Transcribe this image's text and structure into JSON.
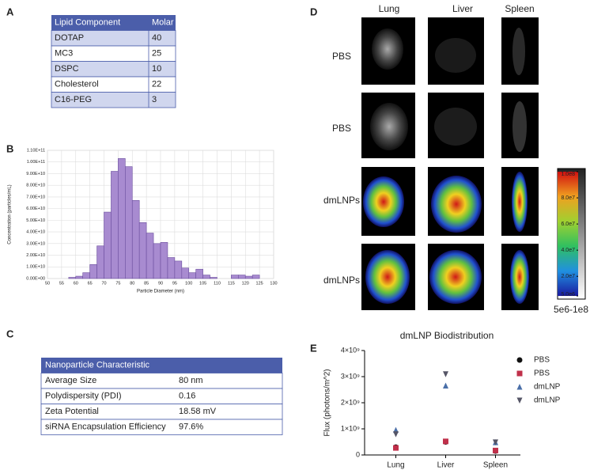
{
  "panel_labels": [
    "A",
    "B",
    "C",
    "D",
    "E"
  ],
  "table_a": {
    "header": [
      "Lipid  Component",
      "Molar %"
    ],
    "rows": [
      [
        "DOTAP",
        "40"
      ],
      [
        "MC3",
        "25"
      ],
      [
        "DSPC",
        "10"
      ],
      [
        "Cholesterol",
        "22"
      ],
      [
        "C16-PEG",
        "3"
      ]
    ]
  },
  "table_c": {
    "header": "Nanoparticle Characteristic",
    "rows": [
      [
        "Average Size",
        "80 nm"
      ],
      [
        "Polydispersity (PDI)",
        "0.16"
      ],
      [
        "Zeta Potential",
        "18.58 mV"
      ],
      [
        "siRNA Encapsulation Efficiency",
        "97.6%"
      ]
    ]
  },
  "imaging": {
    "columns": [
      "Lung",
      "Liver",
      "Spleen"
    ],
    "rows": [
      "PBS",
      "PBS",
      "dmLNPs",
      "dmLNPs"
    ],
    "colorbar": {
      "range": [
        5000000.0,
        100000000.0
      ],
      "ticks": [
        {
          "value": 100000000.0,
          "label": "1.0e8"
        },
        {
          "value": 80000000.0,
          "label": "8.0e7"
        },
        {
          "value": 60000000.0,
          "label": "6.0e7"
        },
        {
          "value": 40000000.0,
          "label": "4.0e7"
        },
        {
          "value": 20000000.0,
          "label": "2.0e7"
        },
        {
          "value": 5000000.0,
          "label": "5.0e6"
        }
      ],
      "caption": "5e6-1e8"
    }
  },
  "chart_data": [
    {
      "type": "histogram",
      "x_label": "Particle Diameter (nm)",
      "y_label": "Concentration (particles/mL)",
      "color": "#a88bd0",
      "edge_color": "#6b4e9e",
      "grid": true,
      "bins": [
        57.5,
        60,
        62.5,
        65,
        67.5,
        70,
        72.5,
        75,
        77.5,
        80,
        82.5,
        85,
        87.5,
        90,
        92.5,
        95,
        97.5,
        100,
        102.5,
        105,
        107.5,
        110,
        112.5,
        115,
        117.5,
        120,
        122.5,
        125,
        127.5
      ],
      "counts": [
        1000000000.0,
        2000000000.0,
        5000000000.0,
        12000000000.0,
        28000000000.0,
        57000000000.0,
        92000000000.0,
        103000000000.0,
        96000000000.0,
        67000000000.0,
        48000000000.0,
        39000000000.0,
        30000000000.0,
        31000000000.0,
        18000000000.0,
        15000000000.0,
        9000000000.0,
        5000000000.0,
        8000000000.0,
        3000000000.0,
        1000000000.0,
        0,
        0,
        3000000000.0,
        3000000000.0,
        2000000000.0,
        3000000000.0,
        0
      ],
      "xlim": [
        50,
        130
      ],
      "xticks": [
        50,
        55,
        60,
        65,
        70,
        75,
        80,
        85,
        90,
        95,
        100,
        105,
        110,
        115,
        120,
        125,
        130
      ],
      "ylim": [
        0,
        110000000000.0
      ],
      "yticks": [
        {
          "value": 0,
          "label": "0.00E+00"
        },
        {
          "value": 10000000000.0,
          "label": "1.00E+10"
        },
        {
          "value": 20000000000.0,
          "label": "2.00E+10"
        },
        {
          "value": 30000000000.0,
          "label": "3.00E+10"
        },
        {
          "value": 40000000000.0,
          "label": "4.00E+10"
        },
        {
          "value": 50000000000.0,
          "label": "5.00E+10"
        },
        {
          "value": 60000000000.0,
          "label": "6.00E+10"
        },
        {
          "value": 70000000000.0,
          "label": "7.00E+10"
        },
        {
          "value": 80000000000.0,
          "label": "8.00E+10"
        },
        {
          "value": 90000000000.0,
          "label": "9.00E+10"
        },
        {
          "value": 100000000000.0,
          "label": "1.00E+11"
        },
        {
          "value": 110000000000.0,
          "label": "1.10E+11"
        }
      ]
    },
    {
      "type": "scatter",
      "title": "dmLNP Biodistribution",
      "y_label": "Flux (photons/m^2)",
      "categories": [
        "Lung",
        "Liver",
        "Spleen"
      ],
      "series": [
        {
          "name": "PBS",
          "color": "#111111",
          "marker": "circle",
          "values": [
            300000000.0,
            500000000.0,
            150000000.0
          ]
        },
        {
          "name": "PBS",
          "color": "#c0304a",
          "marker": "square",
          "values": [
            270000000.0,
            520000000.0,
            170000000.0
          ]
        },
        {
          "name": "dmLNP",
          "color": "#4a6fa8",
          "marker": "triangle-up",
          "values": [
            950000000.0,
            2650000000.0,
            480000000.0
          ]
        },
        {
          "name": "dmLNP",
          "color": "#555566",
          "marker": "triangle-down",
          "values": [
            800000000.0,
            3100000000.0,
            490000000.0
          ]
        }
      ],
      "ylim": [
        0,
        4000000000.0
      ],
      "yticks": [
        0,
        {
          "value": 1000000000.0,
          "label": "1×10⁹"
        },
        {
          "value": 2000000000.0,
          "label": "2×10⁹"
        },
        {
          "value": 3000000000.0,
          "label": "3×10⁹"
        },
        {
          "value": 4000000000.0,
          "label": "4×10⁹"
        }
      ],
      "legend": "right"
    }
  ]
}
